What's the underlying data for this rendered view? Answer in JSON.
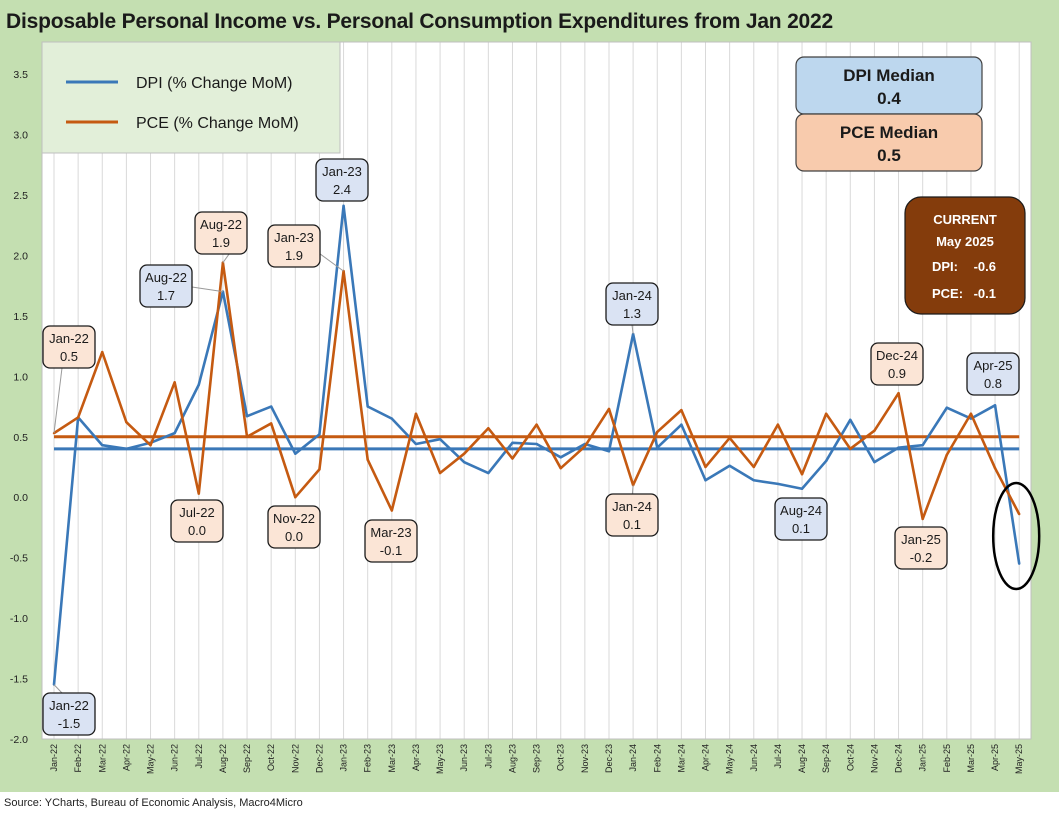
{
  "title": "Disposable Personal Income vs. Personal Consumption Expenditures from Jan 2022",
  "source": "Source: YCharts, Bureau of Economic Analysis, Macro4Micro",
  "legend": [
    {
      "label": "DPI (% Change MoM)",
      "color": "#3a78b8"
    },
    {
      "label": "PCE (% Change MoM)",
      "color": "#c55a11"
    }
  ],
  "medians": {
    "dpi": {
      "title": "DPI Median",
      "value": "0.4",
      "fill": "#bdd7ee"
    },
    "pce": {
      "title": "PCE Median",
      "value": "0.5",
      "fill": "#f8cbad"
    }
  },
  "current": {
    "line1": "CURRENT",
    "line2": "May 2025",
    "dpi_label": "DPI:",
    "dpi_value": "-0.6",
    "pce_label": "PCE:",
    "pce_value": "-0.1",
    "fill": "#843c0c"
  },
  "chart_data": {
    "type": "line",
    "ylim": [
      -2.0,
      3.5
    ],
    "yticks": [
      "3.5",
      "3.0",
      "2.5",
      "2.0",
      "1.5",
      "1.0",
      "0.5",
      "0.0",
      "-0.5",
      "-1.0",
      "-1.5",
      "-2.0"
    ],
    "ytick_values": [
      3.5,
      3.0,
      2.5,
      2.0,
      1.5,
      1.0,
      0.5,
      0.0,
      -0.5,
      -1.0,
      -1.5,
      -2.0
    ],
    "categories": [
      "Jan-22",
      "Feb-22",
      "Mar-22",
      "Apr-22",
      "May-22",
      "Jun-22",
      "Jul-22",
      "Aug-22",
      "Sep-22",
      "Oct-22",
      "Nov-22",
      "Dec-22",
      "Jan-23",
      "Feb-23",
      "Mar-23",
      "Apr-23",
      "May-23",
      "Jun-23",
      "Jul-23",
      "Aug-23",
      "Sep-23",
      "Oct-23",
      "Nov-23",
      "Dec-23",
      "Jan-24",
      "Feb-24",
      "Mar-24",
      "Apr-24",
      "May-24",
      "Jun-24",
      "Jul-24",
      "Aug-24",
      "Sep-24",
      "Oct-24",
      "Nov-24",
      "Dec-24",
      "Jan-25",
      "Feb-25",
      "Mar-25",
      "Apr-25",
      "May-25"
    ],
    "series": [
      {
        "name": "DPI (% Change MoM)",
        "color": "#3a78b8",
        "values": [
          -1.55,
          0.66,
          0.43,
          0.4,
          0.45,
          0.53,
          0.93,
          1.7,
          0.67,
          0.75,
          0.36,
          0.52,
          2.41,
          0.75,
          0.65,
          0.44,
          0.48,
          0.29,
          0.2,
          0.45,
          0.44,
          0.33,
          0.44,
          0.38,
          1.35,
          0.41,
          0.6,
          0.14,
          0.26,
          0.14,
          0.11,
          0.07,
          0.3,
          0.64,
          0.29,
          0.41,
          0.43,
          0.74,
          0.65,
          0.76,
          -0.55
        ]
      },
      {
        "name": "PCE (% Change MoM)",
        "color": "#c55a11",
        "values": [
          0.53,
          0.66,
          1.2,
          0.62,
          0.43,
          0.95,
          0.03,
          1.94,
          0.5,
          0.61,
          0.0,
          0.23,
          1.87,
          0.31,
          -0.11,
          0.69,
          0.2,
          0.36,
          0.57,
          0.32,
          0.6,
          0.24,
          0.42,
          0.73,
          0.1,
          0.54,
          0.72,
          0.25,
          0.49,
          0.25,
          0.6,
          0.19,
          0.69,
          0.4,
          0.55,
          0.86,
          -0.18,
          0.35,
          0.69,
          0.24,
          -0.14
        ]
      }
    ],
    "median_lines": [
      {
        "name": "DPI Median",
        "value": 0.4,
        "color": "#3a78b8"
      },
      {
        "name": "PCE Median",
        "value": 0.5,
        "color": "#c55a11"
      }
    ],
    "annotations": [
      {
        "label": "Jan-22",
        "value": "0.5",
        "series": "pce",
        "index": 0
      },
      {
        "label": "Jan-22",
        "value": "-1.5",
        "series": "dpi",
        "index": 0
      },
      {
        "label": "Aug-22",
        "value": "1.7",
        "series": "dpi",
        "index": 7
      },
      {
        "label": "Aug-22",
        "value": "1.9",
        "series": "pce",
        "index": 7
      },
      {
        "label": "Jul-22",
        "value": "0.0",
        "series": "pce",
        "index": 6
      },
      {
        "label": "Nov-22",
        "value": "0.0",
        "series": "pce",
        "index": 10
      },
      {
        "label": "Jan-23",
        "value": "2.4",
        "series": "dpi",
        "index": 12
      },
      {
        "label": "Jan-23",
        "value": "1.9",
        "series": "pce",
        "index": 12
      },
      {
        "label": "Mar-23",
        "value": "-0.1",
        "series": "pce",
        "index": 14
      },
      {
        "label": "Jan-24",
        "value": "1.3",
        "series": "dpi",
        "index": 24
      },
      {
        "label": "Jan-24",
        "value": "0.1",
        "series": "pce",
        "index": 24
      },
      {
        "label": "Aug-24",
        "value": "0.1",
        "series": "dpi",
        "index": 31
      },
      {
        "label": "Dec-24",
        "value": "0.9",
        "series": "pce",
        "index": 35
      },
      {
        "label": "Jan-25",
        "value": "-0.2",
        "series": "pce",
        "index": 36
      },
      {
        "label": "Apr-25",
        "value": "0.8",
        "series": "dpi",
        "index": 39
      }
    ],
    "highlight": {
      "description": "May-25 values circled",
      "index": 40
    },
    "grid": "vertical",
    "legend_position": "top-left"
  }
}
